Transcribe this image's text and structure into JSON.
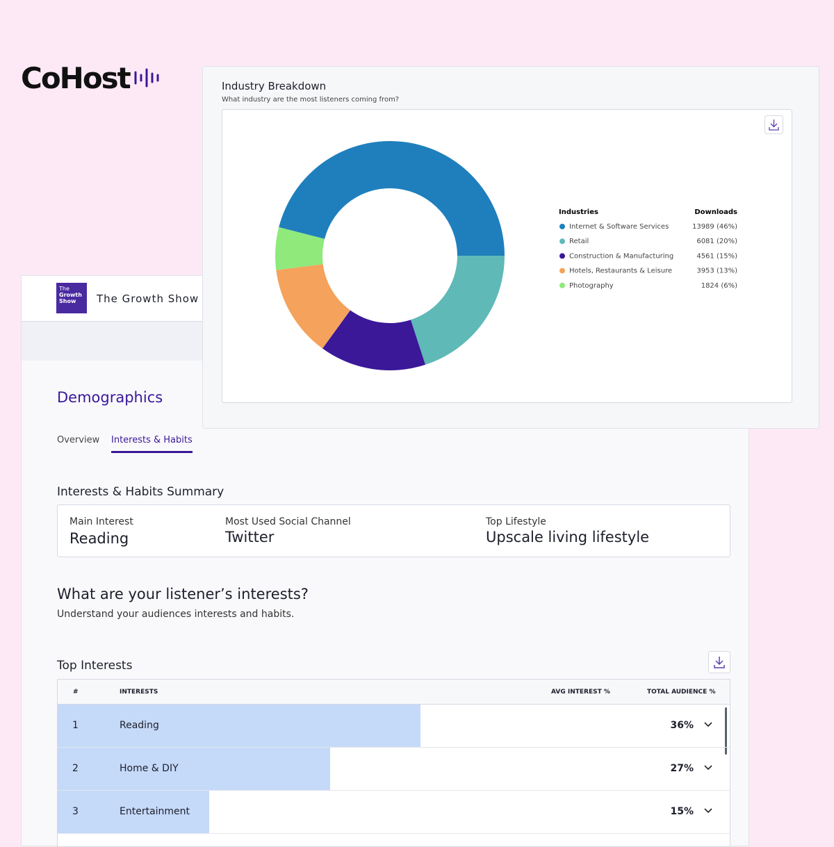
{
  "brand": "CoHost",
  "show": {
    "thumbnail_lines": [
      "The",
      "Growth",
      "Show"
    ],
    "name": "The Growth Show"
  },
  "page": {
    "title": "Demographics",
    "tabs": [
      "Overview",
      "Interests & Habits"
    ]
  },
  "summary": {
    "title": "Interests & Habits Summary",
    "items": [
      {
        "label": "Main Interest",
        "value": "Reading"
      },
      {
        "label": "Most Used Social Channel",
        "value": "Twitter"
      },
      {
        "label": "Top Lifestyle",
        "value": "Upscale living lifestyle"
      }
    ]
  },
  "section": {
    "title": "What are your listener’s interests?",
    "subtitle": "Understand your audiences interests and habits."
  },
  "table": {
    "title": "Top Interests",
    "headers": [
      "#",
      "INTERESTS",
      "AVG INTEREST %",
      "TOTAL AUDIENCE %"
    ],
    "rows": [
      {
        "rank": "1",
        "interest": "Reading",
        "total_audience": 36,
        "total_audience_label": "36%"
      },
      {
        "rank": "2",
        "interest": "Home & DIY",
        "total_audience": 27,
        "total_audience_label": "27%"
      },
      {
        "rank": "3",
        "interest": "Entertainment",
        "total_audience": 15,
        "total_audience_label": "15%"
      }
    ]
  },
  "chart_data": {
    "type": "donut",
    "title": "Industry Breakdown",
    "subtitle": "What industry are the most listeners coming from?",
    "legend_header": "Industries",
    "value_header": "Downloads",
    "categories": [
      "Internet & Software Services",
      "Retail",
      "Construction & Manufacturing",
      "Hotels, Restaurants & Leisure",
      "Photography"
    ],
    "values": [
      13989,
      6081,
      4561,
      3953,
      1824
    ],
    "value_labels": [
      "13989 (46%)",
      "6081 (20%)",
      "4561 (15%)",
      "3953 (13%)",
      "1824 (6%)"
    ],
    "colors": [
      "#1f7fbd",
      "#5fb9b7",
      "#3a1898",
      "#f5a25c",
      "#8fe97b"
    ]
  }
}
